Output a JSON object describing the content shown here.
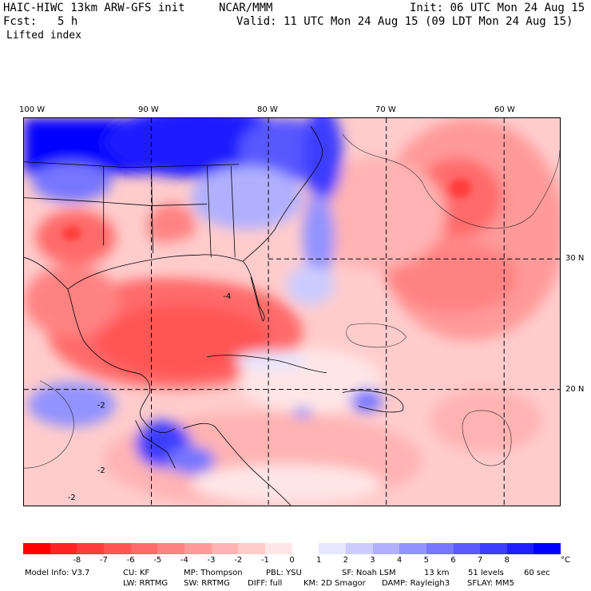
{
  "header": {
    "model_title": "HAIC-HIWC 13km ARW-GFS init",
    "org": "NCAR/MMM",
    "init": "Init: 06 UTC Mon 24 Aug 15",
    "fcst_label": "Fcst:",
    "fcst_value": "5 h",
    "valid": "Valid: 11 UTC Mon 24 Aug 15 (09 LDT Mon 24 Aug 15)",
    "field": "Lifted index"
  },
  "axes": {
    "lon_labels": [
      "100 W",
      "90 W",
      "80 W",
      "70 W",
      "60 W"
    ],
    "lat_labels": [
      "30 N",
      "20 N"
    ]
  },
  "colorbar": {
    "colors": [
      "#ff0000",
      "#ff2323",
      "#ff3c3c",
      "#ff5454",
      "#ff6b6b",
      "#ff8282",
      "#ff9a9a",
      "#ffb3b3",
      "#ffcccc",
      "#ffe6e6",
      "#ffffff",
      "#e6e6ff",
      "#ccccff",
      "#b0b0ff",
      "#9393ff",
      "#7676ff",
      "#5959ff",
      "#3c3cff",
      "#1e1eff",
      "#0000ff"
    ],
    "labels": [
      "-8",
      "-7",
      "-6",
      "-5",
      "-4",
      "-3",
      "-2",
      "-1",
      "0",
      "1",
      "2",
      "3",
      "4",
      "5",
      "6",
      "7",
      "8"
    ],
    "unit": "°C"
  },
  "contour_labels": [
    "-4",
    "-2",
    "-2",
    "-2"
  ],
  "footer": {
    "line1": [
      "Model Info: V3.7",
      "CU: KF",
      "MP: Thompson",
      "PBL: YSU",
      "SF: Noah LSM",
      "13 km",
      "51 levels",
      "60 sec"
    ],
    "line2": [
      "LW: RRTMG",
      "SW: RRTMG",
      "DIFF: full",
      "KM: 2D Smagor",
      "DAMP: Rayleigh3",
      "SFLAY: MM5"
    ]
  }
}
